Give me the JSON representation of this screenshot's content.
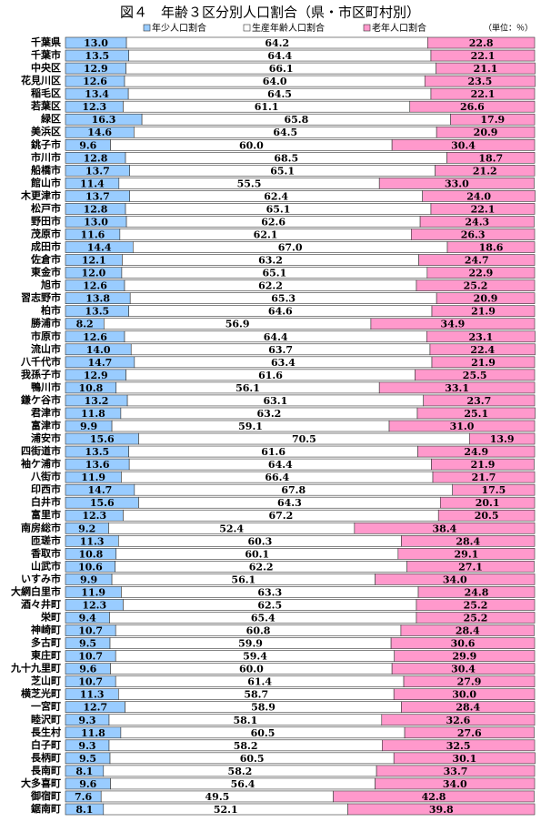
{
  "chart_data": {
    "type": "stacked-bar-horizontal",
    "title": "図４　年齢３区分別人口割合（県・市区町村別）",
    "unit_note": "（単位：％）",
    "xlim": [
      0,
      100
    ],
    "categories": [
      "千葉県",
      "千葉市",
      "中央区",
      "花見川区",
      "稲毛区",
      "若葉区",
      "緑区",
      "美浜区",
      "銚子市",
      "市川市",
      "船橋市",
      "館山市",
      "木更津市",
      "松戸市",
      "野田市",
      "茂原市",
      "成田市",
      "佐倉市",
      "東金市",
      "旭市",
      "習志野市",
      "柏市",
      "勝浦市",
      "市原市",
      "流山市",
      "八千代市",
      "我孫子市",
      "鴨川市",
      "鎌ケ谷市",
      "君津市",
      "富津市",
      "浦安市",
      "四街道市",
      "袖ケ浦市",
      "八街市",
      "印西市",
      "白井市",
      "富里市",
      "南房総市",
      "匝瑳市",
      "香取市",
      "山武市",
      "いすみ市",
      "大網白里市",
      "酒々井町",
      "栄町",
      "神崎町",
      "多古町",
      "東庄町",
      "九十九里町",
      "芝山町",
      "横芝光町",
      "一宮町",
      "睦沢町",
      "長生村",
      "白子町",
      "長柄町",
      "長南町",
      "大多喜町",
      "御宿町",
      "鋸南町"
    ],
    "series": [
      {
        "name": "年少人口割合",
        "color": "#99ccff",
        "values": [
          13.0,
          13.5,
          12.9,
          12.6,
          13.4,
          12.3,
          16.3,
          14.6,
          9.6,
          12.8,
          13.7,
          11.4,
          13.7,
          12.8,
          13.0,
          11.6,
          14.4,
          12.1,
          12.0,
          12.6,
          13.8,
          13.5,
          8.2,
          12.6,
          14.0,
          14.7,
          12.9,
          10.8,
          13.2,
          11.8,
          9.9,
          15.6,
          13.5,
          13.6,
          11.9,
          14.7,
          15.6,
          12.3,
          9.2,
          11.3,
          10.8,
          10.6,
          9.9,
          11.9,
          12.3,
          9.4,
          10.7,
          9.5,
          10.7,
          9.6,
          10.7,
          11.3,
          12.7,
          9.3,
          11.8,
          9.3,
          9.5,
          8.1,
          9.6,
          7.6,
          8.1
        ],
        "value_labels": [
          "13.0",
          "13.5",
          "12.9",
          "12.6",
          "13.4",
          "12.3",
          "16.3",
          "14.6",
          "9.6",
          "12.8",
          "13.7",
          "11.4",
          "13.7",
          "12.8",
          "13.0",
          "11.6",
          "14.4",
          "12.1",
          "12.0",
          "12.6",
          "13.8",
          "13.5",
          "8.2",
          "12.6",
          "14.0",
          "14.7",
          "12.9",
          "10.8",
          "13.2",
          "11.8",
          "9.9",
          "15.6",
          "13.5",
          "13.6",
          "11.9",
          "14.7",
          "15.6",
          "12.3",
          "9.2",
          "11.3",
          "10.8",
          "10.6",
          "9.9",
          "11.9",
          "12.3",
          "9.4",
          "10.7",
          "9.5",
          "10.7",
          "9.6",
          "10.7",
          "11.3",
          "12.7",
          "9.3",
          "11.8",
          "9.3",
          "9.5",
          "8.1",
          "9.6",
          "7.6",
          "8.1"
        ]
      },
      {
        "name": "生産年齢人口割合",
        "color": "#ffffff",
        "values": [
          64.2,
          64.4,
          66.1,
          64.0,
          64.5,
          61.1,
          65.8,
          64.5,
          60.0,
          68.5,
          65.1,
          55.5,
          62.4,
          65.1,
          62.6,
          62.1,
          67.0,
          63.2,
          65.1,
          62.2,
          65.3,
          64.6,
          56.9,
          64.4,
          63.7,
          63.4,
          61.6,
          56.1,
          63.1,
          63.2,
          59.1,
          70.5,
          61.6,
          64.4,
          66.4,
          67.8,
          64.3,
          67.2,
          52.4,
          60.3,
          60.1,
          62.2,
          56.1,
          63.3,
          62.5,
          65.4,
          60.8,
          59.9,
          59.4,
          60.0,
          61.4,
          58.7,
          58.9,
          58.1,
          60.5,
          58.2,
          60.5,
          58.2,
          56.4,
          49.5,
          52.1
        ],
        "value_labels": [
          "64.2",
          "64.4",
          "66.1",
          "64.0",
          "64.5",
          "61.1",
          "65.8",
          "64.5",
          "60.0",
          "68.5",
          "65.1",
          "55.5",
          "62.4",
          "65.1",
          "62.6",
          "62.1",
          "67.0",
          "63.2",
          "65.1",
          "62.2",
          "65.3",
          "64.6",
          "56.9",
          "64.4",
          "63.7",
          "63.4",
          "61.6",
          "56.1",
          "63.1",
          "63.2",
          "59.1",
          "70.5",
          "61.6",
          "64.4",
          "66.4",
          "67.8",
          "64.3",
          "67.2",
          "52.4",
          "60.3",
          "60.1",
          "62.2",
          "56.1",
          "63.3",
          "62.5",
          "65.4",
          "60.8",
          "59.9",
          "59.4",
          "60.0",
          "61.4",
          "58.7",
          "58.9",
          "58.1",
          "60.5",
          "58.2",
          "60.5",
          "58.2",
          "56.4",
          "49.5",
          "52.1"
        ]
      },
      {
        "name": "老年人口割合",
        "color": "#ff99cc",
        "values": [
          22.8,
          22.1,
          21.1,
          23.5,
          22.1,
          26.6,
          17.9,
          20.9,
          30.4,
          18.7,
          21.2,
          33.0,
          24.0,
          22.1,
          24.3,
          26.3,
          18.6,
          24.7,
          22.9,
          25.2,
          20.9,
          21.9,
          34.9,
          23.1,
          22.4,
          21.9,
          25.5,
          33.1,
          23.7,
          25.1,
          31.0,
          13.9,
          24.9,
          21.9,
          21.7,
          17.5,
          20.1,
          20.5,
          38.4,
          28.4,
          29.1,
          27.1,
          34.0,
          24.8,
          25.2,
          25.2,
          28.4,
          30.6,
          29.9,
          30.4,
          27.9,
          30.0,
          28.4,
          32.6,
          27.6,
          32.5,
          30.1,
          33.7,
          34.0,
          42.8,
          39.8
        ],
        "value_labels": [
          "22.8",
          "22.1",
          "21.1",
          "23.5",
          "22.1",
          "26.6",
          "17.9",
          "20.9",
          "30.4",
          "18.7",
          "21.2",
          "33.0",
          "24.0",
          "22.1",
          "24.3",
          "26.3",
          "18.6",
          "24.7",
          "22.9",
          "25.2",
          "20.9",
          "21.9",
          "34.9",
          "23.1",
          "22.4",
          "21.9",
          "25.5",
          "33.1",
          "23.7",
          "25.1",
          "31.0",
          "13.9",
          "24.9",
          "21.9",
          "21.7",
          "17.5",
          "20.1",
          "20.5",
          "38.4",
          "28.4",
          "29.1",
          "27.1",
          "34.0",
          "24.8",
          "25.2",
          "25.2",
          "28.4",
          "30.6",
          "29.9",
          "30.4",
          "27.9",
          "30.0",
          "28.4",
          "32.6",
          "27.6",
          "32.5",
          "30.1",
          "33.7",
          "34.0",
          "42.8",
          "39.8"
        ]
      }
    ]
  }
}
